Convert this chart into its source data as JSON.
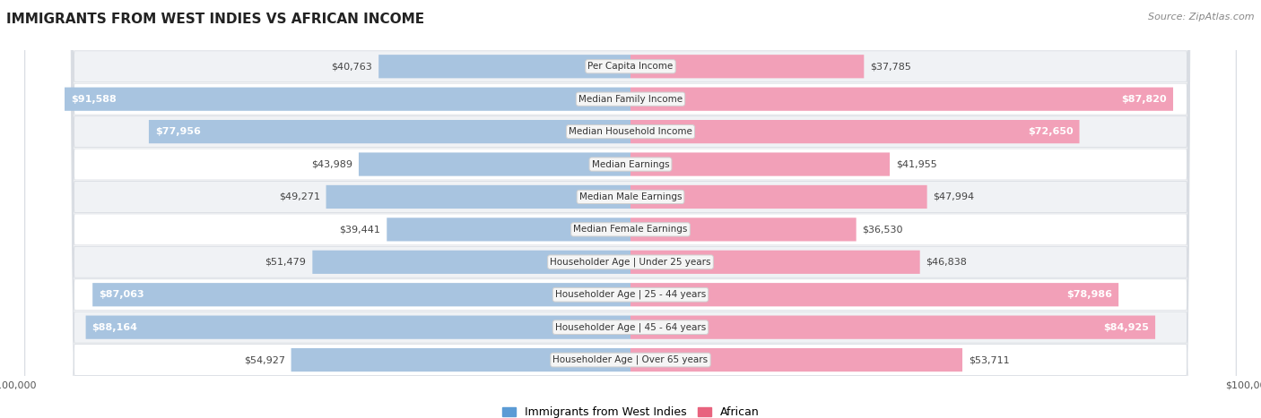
{
  "title": "IMMIGRANTS FROM WEST INDIES VS AFRICAN INCOME",
  "source": "Source: ZipAtlas.com",
  "categories": [
    "Per Capita Income",
    "Median Family Income",
    "Median Household Income",
    "Median Earnings",
    "Median Male Earnings",
    "Median Female Earnings",
    "Householder Age | Under 25 years",
    "Householder Age | 25 - 44 years",
    "Householder Age | 45 - 64 years",
    "Householder Age | Over 65 years"
  ],
  "west_indies": [
    40763,
    91588,
    77956,
    43989,
    49271,
    39441,
    51479,
    87063,
    88164,
    54927
  ],
  "african": [
    37785,
    87820,
    72650,
    41955,
    47994,
    36530,
    46838,
    78986,
    84925,
    53711
  ],
  "west_indies_labels": [
    "$40,763",
    "$91,588",
    "$77,956",
    "$43,989",
    "$49,271",
    "$39,441",
    "$51,479",
    "$87,063",
    "$88,164",
    "$54,927"
  ],
  "african_labels": [
    "$37,785",
    "$87,820",
    "$72,650",
    "$41,955",
    "$47,994",
    "$36,530",
    "$46,838",
    "$78,986",
    "$84,925",
    "$53,711"
  ],
  "west_indies_inside": [
    false,
    true,
    true,
    false,
    false,
    false,
    false,
    true,
    true,
    false
  ],
  "african_inside": [
    false,
    true,
    true,
    false,
    false,
    false,
    false,
    true,
    true,
    false
  ],
  "max_value": 100000,
  "blue_light": "#a8c4e0",
  "blue_mid": "#7aadd4",
  "blue_dark": "#5b9bd5",
  "pink_light": "#f2a0b8",
  "pink_mid": "#ee82a0",
  "pink_dark": "#e8637e",
  "label_box_color": "#f5f5f5",
  "label_box_edge": "#d0d0d0",
  "row_bg_light": "#f0f2f5",
  "row_bg_white": "#ffffff",
  "row_border": "#d8dce2",
  "title_fontsize": 11,
  "source_fontsize": 8,
  "value_fontsize": 8,
  "label_fontsize": 7.5,
  "legend_fontsize": 9,
  "axis_label_fontsize": 8,
  "wi_threshold": 60000,
  "af_threshold": 60000
}
